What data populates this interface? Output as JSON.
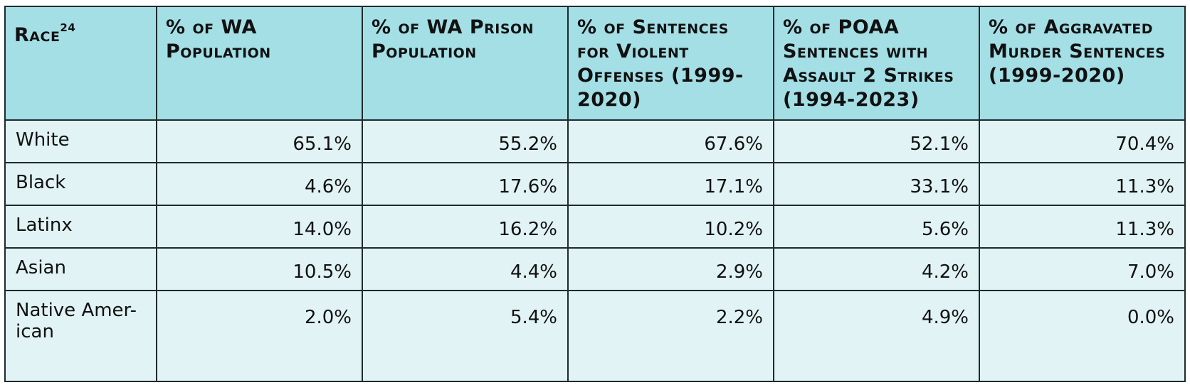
{
  "table": {
    "headers": [
      {
        "text": "Race",
        "sup": "24"
      },
      {
        "text": "% of WA Population"
      },
      {
        "text": "% of WA Prison Population"
      },
      {
        "text": "% of Sentences for Violent Offenses (1999-2020)"
      },
      {
        "text": "% of POAA Sentences with Assault 2 Strikes (1994-2023)"
      },
      {
        "text": "% of Aggravated Murder Sentences (1999-2020)"
      }
    ],
    "rows": [
      {
        "race": "White",
        "values": [
          "65.1%",
          "55.2%",
          "67.6%",
          "52.1%",
          "70.4%"
        ]
      },
      {
        "race": "Black",
        "values": [
          "4.6%",
          "17.6%",
          "17.1%",
          "33.1%",
          "11.3%"
        ]
      },
      {
        "race": "Latinx",
        "values": [
          "14.0%",
          "16.2%",
          "10.2%",
          "5.6%",
          "11.3%"
        ]
      },
      {
        "race": "Asian",
        "values": [
          "10.5%",
          "4.4%",
          "2.9%",
          "4.2%",
          "7.0%"
        ]
      },
      {
        "race": "Native Amer-\nican",
        "values": [
          "2.0%",
          "5.4%",
          "2.2%",
          "4.9%",
          "0.0%"
        ]
      }
    ]
  },
  "colors": {
    "header_bg": "#a4dfe6",
    "cell_bg": "#e1f3f4",
    "border": "#1f2a2c"
  }
}
